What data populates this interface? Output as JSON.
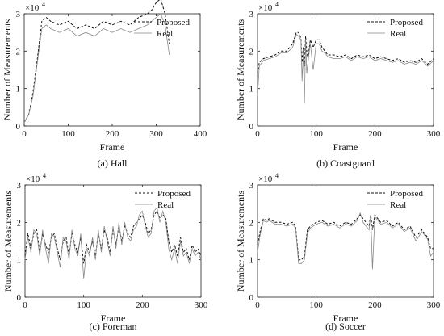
{
  "figure": {
    "shared": {
      "ylabel": "Number of Measurements",
      "xlabel": "Frame",
      "multiplier": "×10",
      "exponent": "4",
      "legend": [
        "Proposed",
        "Real"
      ]
    }
  },
  "chart_data": [
    {
      "type": "line",
      "caption": "(a) Hall",
      "xlabel": "Frame",
      "ylabel": "Number of Measurements",
      "xlim": [
        0,
        400
      ],
      "ylim": [
        0,
        3
      ],
      "xticks": [
        0,
        100,
        200,
        300,
        400
      ],
      "yticks": [
        0,
        1,
        2,
        3
      ],
      "y_scale_note": "×10^4",
      "legend_position": "top-right",
      "series": [
        {
          "name": "Proposed",
          "style": "dashed",
          "x": [
            0,
            10,
            20,
            30,
            40,
            50,
            60,
            80,
            100,
            120,
            140,
            160,
            180,
            200,
            220,
            240,
            260,
            280,
            290,
            300,
            310,
            320,
            330
          ],
          "y": [
            0.1,
            0.3,
            0.9,
            1.8,
            2.8,
            2.9,
            2.8,
            2.7,
            2.8,
            2.6,
            2.7,
            2.6,
            2.8,
            2.7,
            2.8,
            2.7,
            2.9,
            3.0,
            3.1,
            3.3,
            3.4,
            3.0,
            2.2
          ]
        },
        {
          "name": "Real",
          "style": "solid",
          "x": [
            0,
            10,
            20,
            30,
            40,
            50,
            60,
            80,
            100,
            120,
            140,
            160,
            180,
            200,
            220,
            240,
            260,
            280,
            290,
            300,
            310,
            320,
            330
          ],
          "y": [
            0.1,
            0.3,
            0.8,
            1.7,
            2.6,
            2.7,
            2.6,
            2.5,
            2.6,
            2.4,
            2.5,
            2.4,
            2.6,
            2.5,
            2.6,
            2.5,
            2.6,
            2.7,
            2.8,
            2.9,
            3.0,
            2.7,
            1.9
          ]
        }
      ]
    },
    {
      "type": "line",
      "caption": "(b) Coastguard",
      "xlabel": "Frame",
      "ylabel": "Number of Measurements",
      "xlim": [
        0,
        300
      ],
      "ylim": [
        0,
        3
      ],
      "xticks": [
        0,
        100,
        200,
        300
      ],
      "yticks": [
        0,
        1,
        2,
        3
      ],
      "y_scale_note": "×10^4",
      "legend_position": "top-right",
      "series": [
        {
          "name": "Proposed",
          "style": "dashed",
          "x": [
            0,
            3,
            10,
            20,
            30,
            40,
            50,
            60,
            66,
            70,
            74,
            76,
            78,
            80,
            82,
            84,
            86,
            90,
            95,
            100,
            105,
            110,
            115,
            120,
            130,
            140,
            150,
            160,
            170,
            180,
            190,
            200,
            210,
            220,
            230,
            240,
            250,
            260,
            270,
            280,
            290,
            300
          ],
          "y": [
            1.4,
            1.7,
            1.8,
            1.85,
            1.9,
            2.0,
            2.0,
            2.2,
            2.5,
            2.5,
            2.35,
            1.7,
            2.1,
            1.6,
            2.4,
            2.0,
            1.8,
            2.3,
            2.1,
            2.3,
            2.3,
            2.1,
            2.0,
            1.9,
            1.9,
            1.85,
            1.9,
            1.8,
            1.9,
            1.85,
            1.9,
            1.8,
            1.85,
            1.8,
            1.75,
            1.8,
            1.7,
            1.75,
            1.7,
            1.8,
            1.65,
            1.8
          ]
        },
        {
          "name": "Real",
          "style": "solid",
          "x": [
            0,
            3,
            10,
            20,
            30,
            40,
            50,
            60,
            66,
            70,
            74,
            76,
            78,
            80,
            82,
            84,
            86,
            90,
            95,
            100,
            105,
            110,
            115,
            120,
            130,
            140,
            150,
            160,
            170,
            180,
            190,
            200,
            210,
            220,
            230,
            240,
            250,
            260,
            270,
            280,
            290,
            300
          ],
          "y": [
            0.8,
            1.6,
            1.75,
            1.8,
            1.85,
            1.95,
            1.95,
            2.1,
            2.45,
            2.4,
            2.3,
            1.2,
            2.0,
            0.6,
            2.3,
            1.4,
            1.7,
            2.2,
            1.5,
            2.2,
            2.2,
            2.0,
            1.95,
            1.85,
            1.8,
            1.8,
            1.85,
            1.75,
            1.85,
            1.8,
            1.85,
            1.75,
            1.8,
            1.75,
            1.7,
            1.75,
            1.65,
            1.7,
            1.65,
            1.75,
            1.6,
            1.75
          ]
        }
      ]
    },
    {
      "type": "line",
      "caption": "(c) Foreman",
      "xlabel": "Frame",
      "ylabel": "Number of Measurements",
      "xlim": [
        0,
        300
      ],
      "ylim": [
        0,
        3
      ],
      "xticks": [
        0,
        100,
        200,
        300
      ],
      "yticks": [
        0,
        1,
        2,
        3
      ],
      "y_scale_note": "×10^4",
      "legend_position": "top-right",
      "series": [
        {
          "name": "Proposed",
          "style": "dashed",
          "x": [
            0,
            5,
            10,
            15,
            20,
            25,
            30,
            35,
            40,
            45,
            50,
            55,
            60,
            65,
            70,
            75,
            80,
            85,
            90,
            95,
            100,
            105,
            110,
            115,
            120,
            125,
            130,
            135,
            140,
            145,
            150,
            155,
            160,
            165,
            170,
            175,
            180,
            185,
            190,
            195,
            200,
            205,
            210,
            215,
            220,
            225,
            230,
            235,
            240,
            245,
            250,
            255,
            260,
            265,
            270,
            275,
            280,
            285,
            290,
            295,
            300
          ],
          "y": [
            1.1,
            1.7,
            1.3,
            1.7,
            1.8,
            1.2,
            1.7,
            1.4,
            1.2,
            1.6,
            1.7,
            1.3,
            1.0,
            1.5,
            1.6,
            1.1,
            1.7,
            1.4,
            1.2,
            1.6,
            0.9,
            1.4,
            1.2,
            1.5,
            1.1,
            1.7,
            1.3,
            1.8,
            1.6,
            1.2,
            1.8,
            1.4,
            1.9,
            1.5,
            1.9,
            1.7,
            1.6,
            1.9,
            2.0,
            2.1,
            2.2,
            2.0,
            1.7,
            1.8,
            2.2,
            2.3,
            2.1,
            2.2,
            2.1,
            1.5,
            1.2,
            1.4,
            1.1,
            1.6,
            1.2,
            1.3,
            1.0,
            1.4,
            1.2,
            1.3,
            1.1
          ]
        },
        {
          "name": "Real",
          "style": "solid",
          "x": [
            0,
            5,
            10,
            15,
            20,
            25,
            30,
            35,
            40,
            45,
            50,
            55,
            60,
            65,
            70,
            75,
            80,
            85,
            90,
            95,
            100,
            105,
            110,
            115,
            120,
            125,
            130,
            135,
            140,
            145,
            150,
            155,
            160,
            165,
            170,
            175,
            180,
            185,
            190,
            195,
            200,
            205,
            210,
            215,
            220,
            225,
            230,
            235,
            240,
            245,
            250,
            255,
            260,
            265,
            270,
            275,
            280,
            285,
            290,
            295,
            300
          ],
          "y": [
            1.0,
            1.6,
            1.2,
            1.8,
            1.7,
            1.1,
            1.8,
            1.3,
            0.9,
            1.7,
            1.6,
            1.2,
            0.8,
            1.6,
            1.5,
            1.0,
            1.8,
            1.3,
            1.1,
            1.7,
            0.5,
            1.3,
            1.1,
            1.6,
            1.0,
            1.8,
            1.2,
            1.9,
            1.5,
            1.1,
            1.9,
            1.3,
            2.0,
            1.4,
            2.0,
            1.6,
            1.5,
            1.8,
            1.9,
            2.2,
            2.3,
            1.9,
            1.6,
            1.7,
            2.3,
            2.4,
            2.0,
            2.3,
            2.0,
            1.3,
            1.0,
            1.3,
            0.9,
            1.5,
            1.1,
            1.2,
            0.9,
            1.3,
            1.1,
            1.2,
            1.0
          ]
        }
      ]
    },
    {
      "type": "line",
      "caption": "(d) Soccer",
      "xlabel": "Frame",
      "ylabel": "Number of Measurements",
      "xlim": [
        0,
        300
      ],
      "ylim": [
        0,
        3
      ],
      "xticks": [
        0,
        100,
        200,
        300
      ],
      "yticks": [
        0,
        1,
        2,
        3
      ],
      "y_scale_note": "×10^4",
      "legend_position": "top-right",
      "series": [
        {
          "name": "Proposed",
          "style": "dashed",
          "x": [
            0,
            5,
            10,
            15,
            20,
            30,
            40,
            50,
            60,
            65,
            70,
            75,
            80,
            85,
            90,
            100,
            110,
            120,
            130,
            140,
            150,
            160,
            170,
            175,
            180,
            185,
            190,
            193,
            196,
            200,
            205,
            210,
            220,
            230,
            240,
            250,
            260,
            270,
            280,
            290,
            295,
            300
          ],
          "y": [
            1.4,
            1.8,
            2.1,
            2.05,
            2.1,
            2.0,
            2.0,
            1.95,
            2.0,
            1.9,
            1.0,
            1.0,
            1.1,
            1.8,
            1.9,
            2.0,
            2.05,
            1.95,
            2.0,
            1.9,
            2.0,
            1.95,
            2.1,
            2.2,
            2.1,
            2.0,
            1.9,
            2.2,
            1.8,
            2.2,
            2.1,
            2.0,
            2.05,
            1.9,
            2.0,
            1.8,
            1.9,
            1.6,
            1.8,
            1.6,
            1.3,
            1.3
          ]
        },
        {
          "name": "Real",
          "style": "solid",
          "x": [
            0,
            5,
            10,
            15,
            20,
            30,
            40,
            50,
            60,
            65,
            70,
            75,
            80,
            85,
            90,
            100,
            110,
            120,
            130,
            140,
            150,
            160,
            170,
            175,
            180,
            185,
            190,
            193,
            196,
            200,
            205,
            210,
            220,
            230,
            240,
            250,
            260,
            270,
            280,
            290,
            295,
            300
          ],
          "y": [
            1.2,
            1.7,
            2.05,
            2.0,
            2.05,
            1.95,
            1.95,
            1.9,
            1.95,
            1.85,
            0.9,
            0.9,
            1.0,
            1.7,
            1.85,
            1.95,
            2.0,
            1.9,
            1.95,
            1.85,
            1.95,
            1.9,
            2.05,
            2.25,
            2.0,
            1.9,
            1.8,
            2.2,
            0.75,
            2.15,
            2.05,
            1.95,
            2.0,
            1.85,
            1.95,
            1.75,
            1.85,
            1.5,
            1.75,
            1.55,
            1.1,
            1.2
          ]
        }
      ]
    }
  ]
}
